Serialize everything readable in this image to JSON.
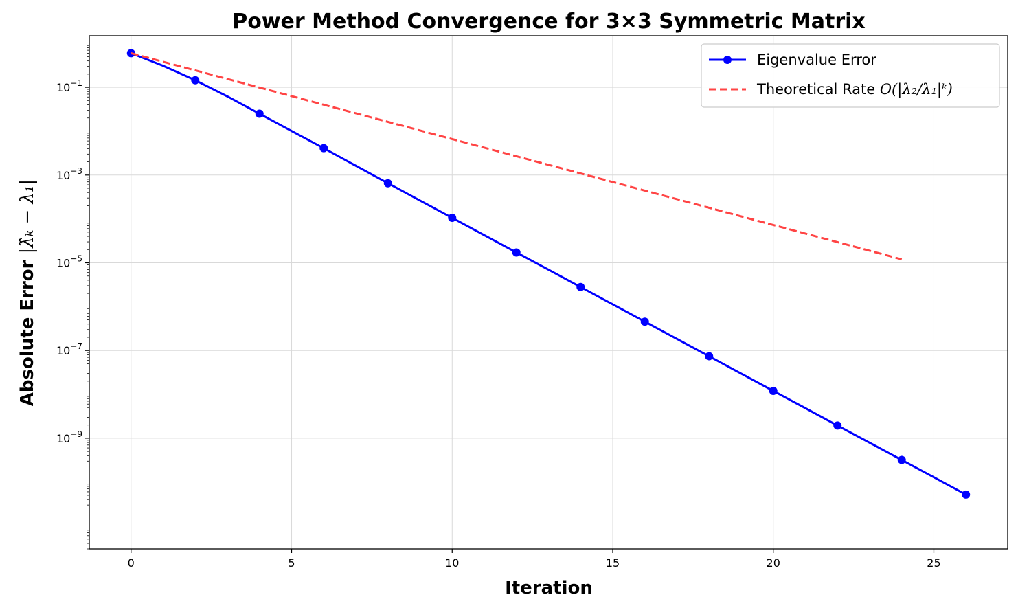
{
  "chart_data": {
    "type": "line",
    "title": "Power Method Convergence for 3×3 Symmetric Matrix",
    "xlabel": "Iteration",
    "ylabel": {
      "prefix": "Absolute Error ",
      "math": "|λ̂ₖ − λ₁|"
    },
    "y_scale": "log",
    "xlim": [
      -1.3,
      27.3
    ],
    "ylim": [
      3e-12,
      1.5
    ],
    "x_ticks": [
      0,
      5,
      10,
      15,
      20,
      25
    ],
    "y_ticks": [
      {
        "value": 0.1,
        "base": "10",
        "exp": "−1"
      },
      {
        "value": 0.001,
        "base": "10",
        "exp": "−3"
      },
      {
        "value": 1e-05,
        "base": "10",
        "exp": "−5"
      },
      {
        "value": 1e-07,
        "base": "10",
        "exp": "−7"
      },
      {
        "value": 1e-09,
        "base": "10",
        "exp": "−9"
      }
    ],
    "grid": true,
    "legend_position": "top-right",
    "series": [
      {
        "name": "Eigenvalue Error",
        "color": "#0000ff",
        "style": "solid-with-markers",
        "marker_every": 2,
        "x": [
          0,
          1,
          2,
          3,
          4,
          5,
          6,
          7,
          8,
          9,
          10,
          11,
          12,
          13,
          14,
          15,
          16,
          17,
          18,
          19,
          20,
          21,
          22,
          23,
          24,
          25,
          26
        ],
        "y": [
          0.6,
          0.31,
          0.145,
          0.062,
          0.025,
          0.0101,
          0.0041,
          0.00163,
          0.00065,
          0.000262,
          0.000106,
          4.26e-05,
          1.72e-05,
          6.95e-06,
          2.8e-06,
          1.13e-06,
          4.55e-07,
          1.84e-07,
          7.4e-08,
          2.98e-08,
          1.2e-08,
          4.85e-09,
          1.95e-09,
          7.9e-10,
          3.2e-10,
          1.29e-10,
          5.2e-11
        ]
      },
      {
        "name": "Theoretical Rate",
        "name_math": "O(|λ₂/λ₁|ᵏ)",
        "color": "#ff4444",
        "style": "dashed",
        "x": [
          0,
          24
        ],
        "y": [
          0.6,
          1.2e-05
        ]
      }
    ]
  }
}
